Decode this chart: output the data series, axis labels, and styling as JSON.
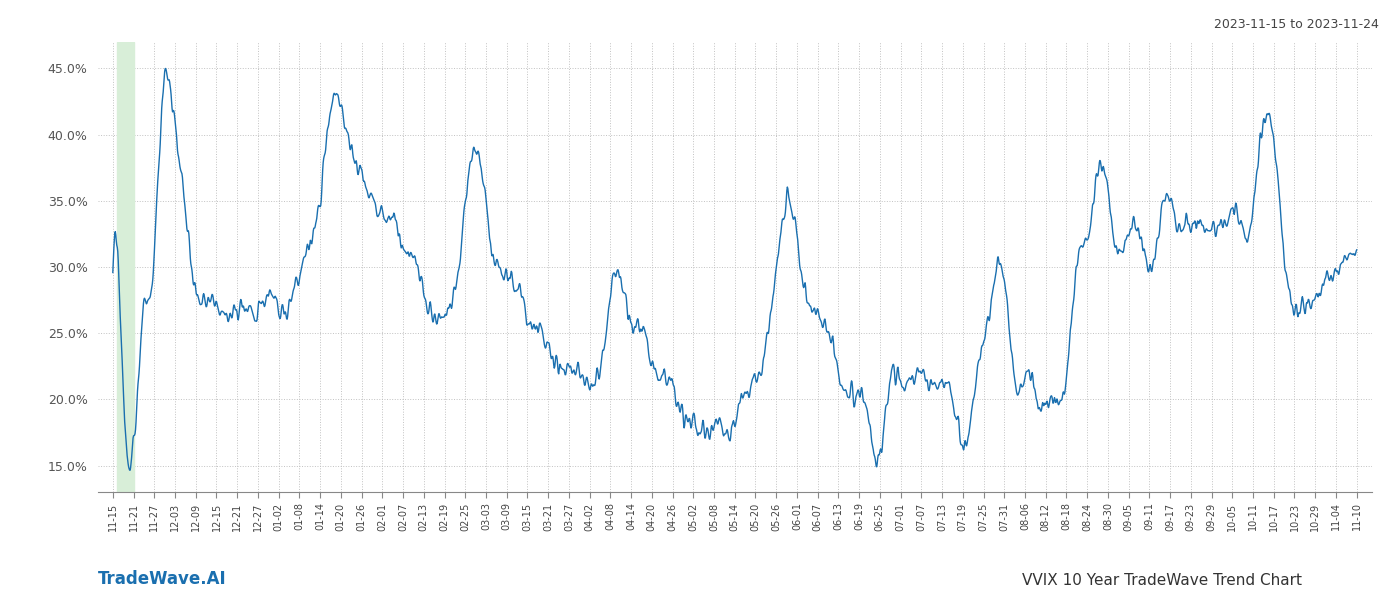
{
  "title_top_right": "2023-11-15 to 2023-11-24",
  "title_bottom_left": "TradeWave.AI",
  "title_bottom_right": "VVIX 10 Year TradeWave Trend Chart",
  "line_color": "#1a6faf",
  "background_color": "#ffffff",
  "grid_color": "#bbbbbb",
  "highlight_color": "#d8eed8",
  "ylim_min": 0.13,
  "ylim_max": 0.47,
  "yticks": [
    0.15,
    0.2,
    0.25,
    0.3,
    0.35,
    0.4,
    0.45
  ],
  "x_labels": [
    "11-15",
    "11-21",
    "11-27",
    "12-03",
    "12-09",
    "12-15",
    "12-21",
    "12-27",
    "01-02",
    "01-08",
    "01-14",
    "01-20",
    "01-26",
    "02-01",
    "02-07",
    "02-13",
    "02-19",
    "02-25",
    "03-03",
    "03-09",
    "03-15",
    "03-21",
    "03-27",
    "04-02",
    "04-08",
    "04-14",
    "04-20",
    "04-26",
    "05-02",
    "05-08",
    "05-14",
    "05-20",
    "05-26",
    "06-01",
    "06-07",
    "06-13",
    "06-19",
    "06-25",
    "07-01",
    "07-07",
    "07-13",
    "07-19",
    "07-25",
    "07-31",
    "08-06",
    "08-12",
    "08-18",
    "08-24",
    "08-30",
    "09-05",
    "09-11",
    "09-17",
    "09-23",
    "09-29",
    "10-05",
    "10-11",
    "10-17",
    "10-23",
    "10-29",
    "11-04",
    "11-10"
  ]
}
